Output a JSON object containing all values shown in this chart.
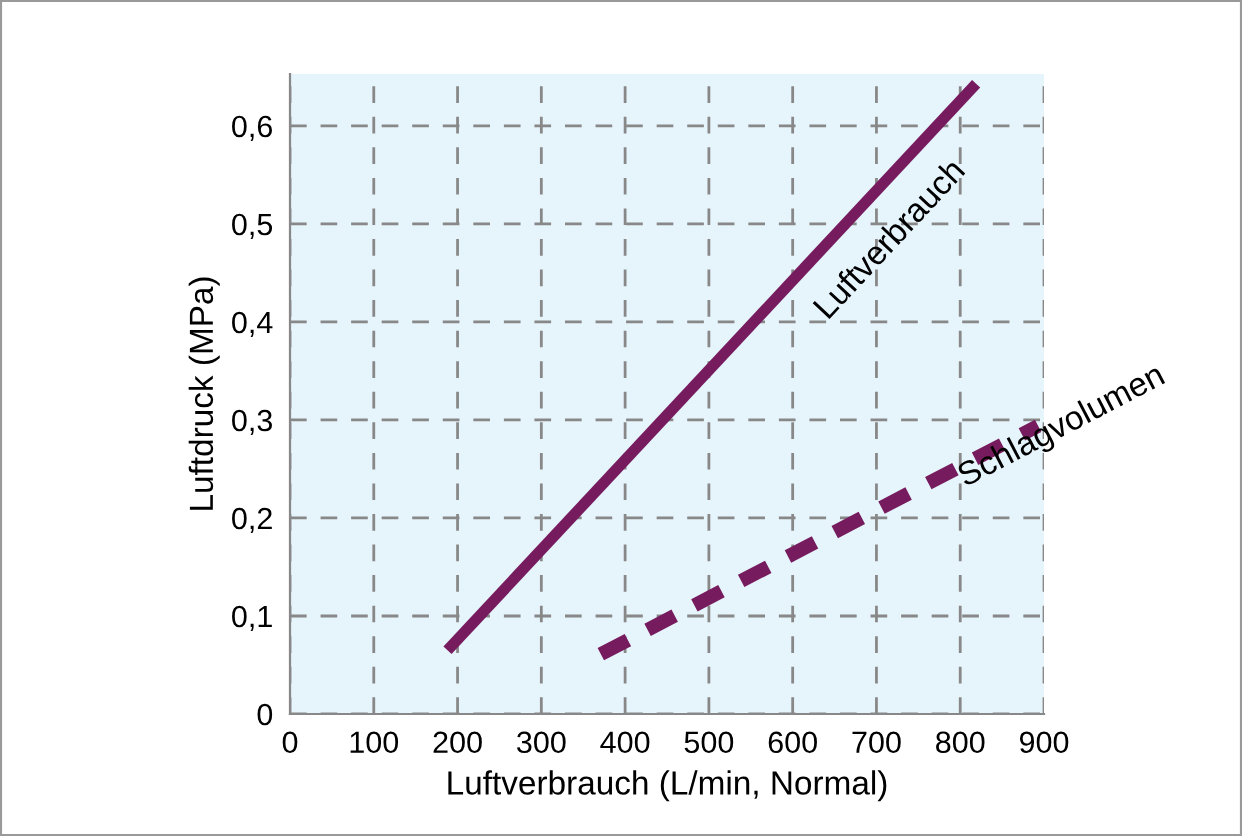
{
  "chart_data": {
    "type": "line",
    "xlabel": "Luftverbrauch (L/min, Normal)",
    "ylabel": "Luftdruck (MPa)",
    "series": [
      {
        "name": "Luftverbrauch",
        "color": "#761c5e",
        "x": [
          188,
          819
        ],
        "values": [
          0.065,
          0.643
        ],
        "line_style": "solid"
      },
      {
        "name": "Schlagvolumen",
        "color": "#761c5e",
        "x": [
          371,
          893
        ],
        "values": [
          0.061,
          0.294
        ],
        "line_style": "dashed"
      }
    ],
    "xlim": [
      0,
      900
    ],
    "ylim": [
      0,
      0.653
    ],
    "xticks": [
      0,
      100,
      200,
      300,
      400,
      500,
      600,
      700,
      800,
      900
    ],
    "yticks": [
      {
        "value": 0,
        "label": "0"
      },
      {
        "value": 0.1,
        "label": "0,1"
      },
      {
        "value": 0.2,
        "label": "0,2"
      },
      {
        "value": 0.3,
        "label": "0,3"
      },
      {
        "value": 0.4,
        "label": "0,4"
      },
      {
        "value": 0.5,
        "label": "0,5"
      },
      {
        "value": 0.6,
        "label": "0,6"
      }
    ],
    "grid": true,
    "marker": "none"
  }
}
